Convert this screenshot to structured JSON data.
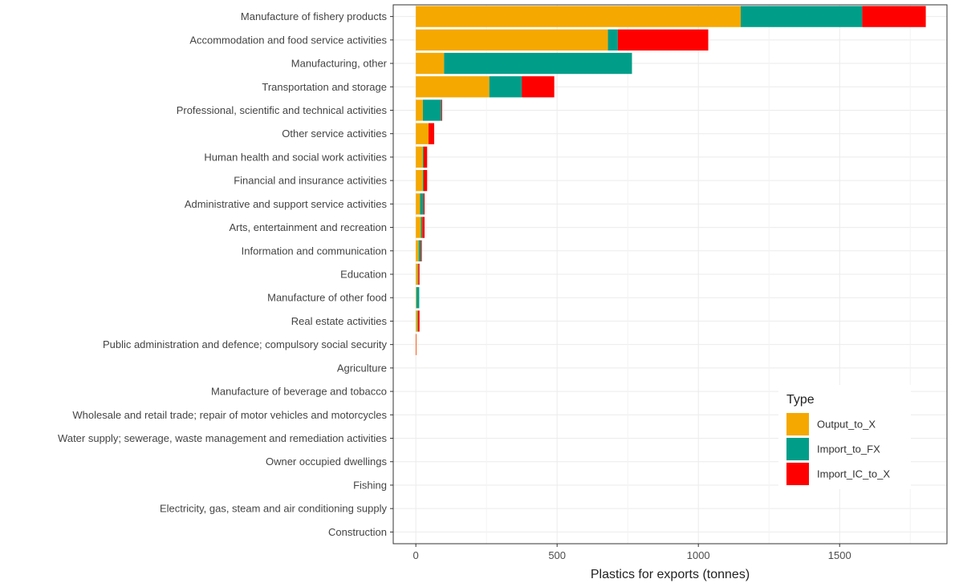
{
  "chart_data": {
    "type": "bar",
    "orientation": "horizontal",
    "stacked": true,
    "categories": [
      "Manufacture of fishery products",
      "Accommodation and food service activities",
      "Manufacturing, other",
      "Transportation and storage",
      "Professional, scientific and technical activities",
      "Other service activities",
      "Human health and social work activities",
      "Financial and insurance activities",
      "Administrative and support service activities",
      "Arts, entertainment and recreation",
      "Information and communication",
      "Education",
      "Manufacture of other food",
      "Real estate activities",
      "Public administration and defence; compulsory social security",
      "Agriculture",
      "Manufacture of beverage and tobacco",
      "Wholesale and retail trade; repair of motor vehicles and motorcycles",
      "Water supply; sewerage, waste management and remediation activities",
      "Owner occupied dwellings",
      "Fishing",
      "Electricity, gas, steam and air conditioning supply",
      "Construction"
    ],
    "series": [
      {
        "name": "Output_to_X",
        "color": "#F5A800",
        "values": [
          1150,
          680,
          100,
          260,
          25,
          45,
          25,
          25,
          15,
          18,
          10,
          7,
          2,
          6,
          1,
          0,
          0,
          0,
          0,
          0,
          0,
          0,
          0
        ]
      },
      {
        "name": "Import_to_FX",
        "color": "#009E89",
        "values": [
          430,
          35,
          665,
          115,
          65,
          0,
          3,
          3,
          12,
          5,
          8,
          2,
          10,
          2,
          0,
          0,
          0,
          0,
          0,
          0,
          0,
          0,
          0
        ]
      },
      {
        "name": "Import_IC_to_X",
        "color": "#FF0000",
        "values": [
          225,
          320,
          0,
          115,
          3,
          20,
          12,
          12,
          4,
          8,
          3,
          4,
          0,
          5,
          1,
          0,
          0,
          0,
          0,
          0,
          0,
          0,
          0
        ]
      }
    ],
    "xlabel": "Plastics for exports (tonnes)",
    "ylabel": "",
    "xlim": [
      -80,
      1880
    ],
    "xticks": [
      0,
      500,
      1000,
      1500
    ],
    "grid": true,
    "legend": {
      "title": "Type",
      "position": "bottom-right"
    }
  }
}
